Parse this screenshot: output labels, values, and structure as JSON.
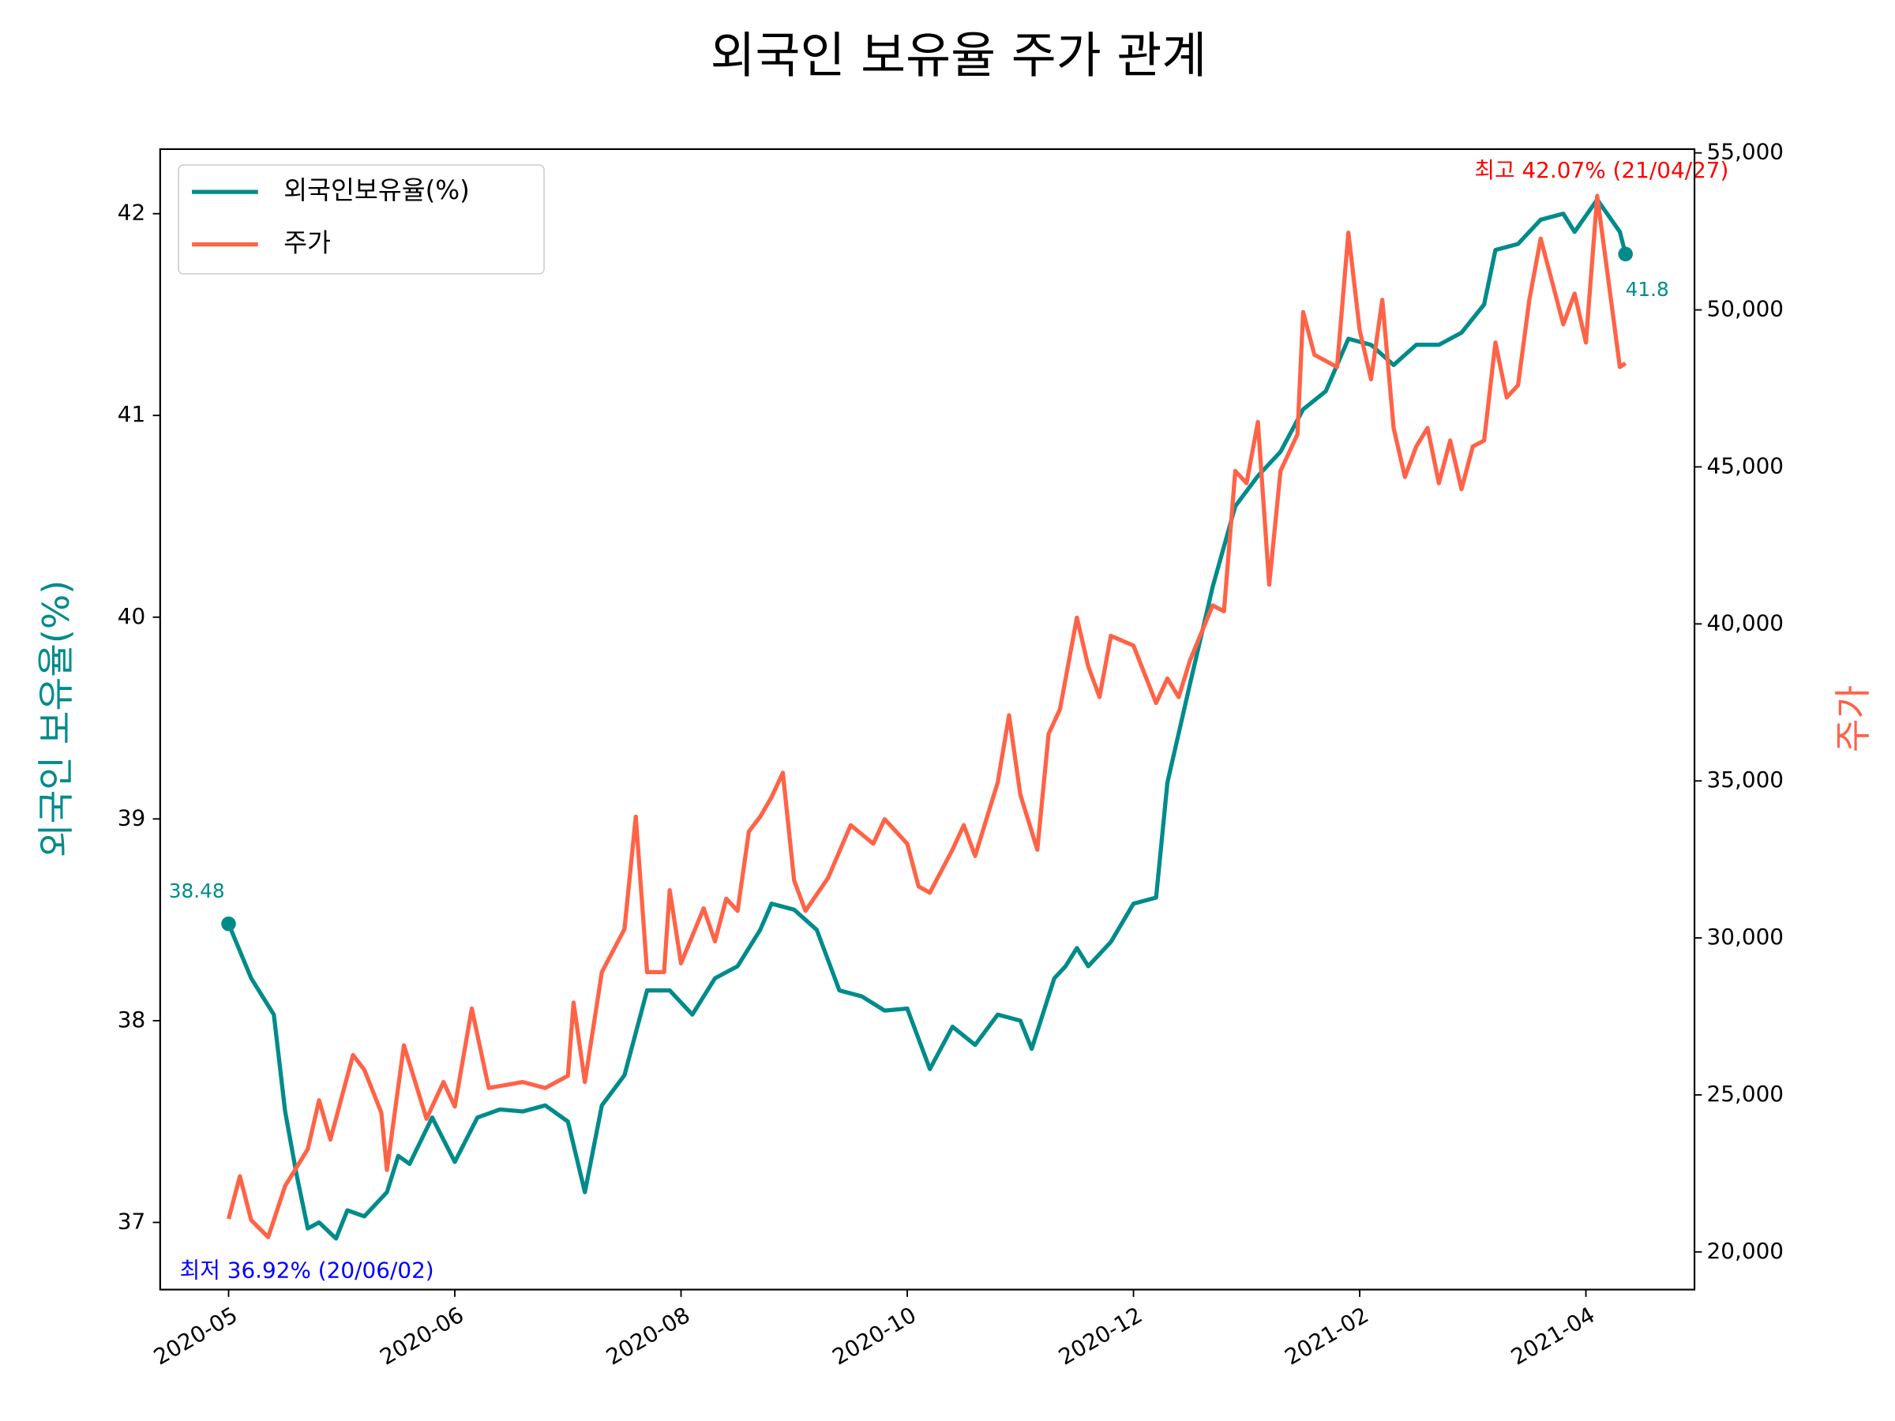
{
  "chart_data": {
    "type": "line",
    "title": "외국인 보유율 주가 관계",
    "ylabel": "외국인 보유율(%)",
    "y2label": "주가",
    "xlim": [
      -12.1,
      259.2
    ],
    "xticks": [
      {
        "value": 0,
        "label": "2020-05"
      },
      {
        "value": 40,
        "label": "2020-06"
      },
      {
        "value": 80,
        "label": "2020-08"
      },
      {
        "value": 120,
        "label": "2020-10"
      },
      {
        "value": 160,
        "label": "2020-12"
      },
      {
        "value": 200,
        "label": "2021-02"
      },
      {
        "value": 240,
        "label": "2021-04"
      }
    ],
    "ylim": [
      36.667,
      42.32
    ],
    "yticks": [
      37,
      38,
      39,
      40,
      41,
      42
    ],
    "y2lim": [
      18800,
      55120
    ],
    "y2ticks": [
      {
        "value": 20000,
        "label": "20,000"
      },
      {
        "value": 25000,
        "label": "25,000"
      },
      {
        "value": 30000,
        "label": "30,000"
      },
      {
        "value": 35000,
        "label": "35,000"
      },
      {
        "value": 40000,
        "label": "40,000"
      },
      {
        "value": 45000,
        "label": "45,000"
      },
      {
        "value": 50000,
        "label": "50,000"
      },
      {
        "value": 55000,
        "label": "55,000"
      }
    ],
    "legend": "upper left",
    "series": [
      {
        "name": "외국인보유율(%)",
        "color": "#008b8b",
        "x": [
          0,
          4,
          8,
          10,
          12,
          14,
          16,
          19,
          21,
          24,
          28,
          30,
          32,
          36,
          40,
          44,
          48,
          52,
          56,
          60,
          63,
          66,
          70,
          74,
          78,
          82,
          86,
          90,
          94,
          96,
          100,
          104,
          108,
          112,
          116,
          120,
          124,
          128,
          132,
          136,
          140,
          142,
          146,
          148,
          150,
          152,
          156,
          160,
          164,
          166,
          170,
          174,
          178,
          182,
          186,
          190,
          194,
          198,
          202,
          206,
          210,
          214,
          218,
          222,
          224,
          228,
          232,
          236,
          238,
          242,
          246,
          247
        ],
        "values": [
          38.48,
          38.21,
          38.03,
          37.55,
          37.24,
          36.97,
          37.0,
          36.92,
          37.06,
          37.03,
          37.15,
          37.33,
          37.29,
          37.52,
          37.3,
          37.52,
          37.56,
          37.55,
          37.58,
          37.5,
          37.15,
          37.58,
          37.73,
          38.15,
          38.15,
          38.03,
          38.21,
          38.27,
          38.45,
          38.58,
          38.55,
          38.45,
          38.15,
          38.12,
          38.05,
          38.06,
          37.76,
          37.97,
          37.88,
          38.03,
          38.0,
          37.86,
          38.21,
          38.27,
          38.36,
          38.27,
          38.39,
          38.58,
          38.61,
          39.18,
          39.67,
          40.15,
          40.55,
          40.7,
          40.82,
          41.03,
          41.12,
          41.38,
          41.35,
          41.25,
          41.35,
          41.35,
          41.41,
          41.55,
          41.82,
          41.85,
          41.97,
          42.0,
          41.91,
          42.07,
          41.91,
          41.8
        ]
      },
      {
        "name": "주가",
        "color": "#ff6347",
        "axis": "y2",
        "x": [
          0,
          2,
          4,
          7,
          10,
          14,
          16,
          18,
          22,
          24,
          27,
          28,
          31,
          35,
          38,
          40,
          43,
          46,
          52,
          56,
          60,
          61,
          63,
          66,
          70,
          72,
          74,
          77,
          78,
          80,
          84,
          86,
          88,
          90,
          92,
          94,
          96,
          98,
          100,
          102,
          106,
          110,
          114,
          116,
          120,
          122,
          124,
          128,
          130,
          132,
          136,
          138,
          140,
          143,
          145,
          147,
          150,
          152,
          154,
          156,
          160,
          164,
          166,
          168,
          170,
          174,
          176,
          178,
          180,
          182,
          184,
          186,
          189,
          190,
          192,
          196,
          198,
          200,
          202,
          204,
          206,
          208,
          210,
          212,
          214,
          216,
          218,
          220,
          222,
          224,
          226,
          228,
          230,
          232,
          234,
          236,
          238,
          240,
          242,
          244,
          246,
          247
        ],
        "values": [
          21050,
          22410,
          21010,
          20470,
          22100,
          23270,
          24830,
          23580,
          26270,
          25800,
          24440,
          22610,
          26580,
          24240,
          25410,
          24630,
          27750,
          25220,
          25410,
          25220,
          25610,
          27940,
          25410,
          28910,
          30280,
          33860,
          28910,
          28910,
          31520,
          29190,
          30940,
          29890,
          31250,
          30860,
          33390,
          33860,
          34480,
          35260,
          31830,
          30860,
          31910,
          33590,
          33000,
          33780,
          33000,
          31640,
          31440,
          32810,
          33590,
          32610,
          34950,
          37090,
          34560,
          32810,
          36500,
          37280,
          40200,
          38650,
          37670,
          39620,
          39310,
          37480,
          38260,
          37670,
          38840,
          40590,
          40400,
          44870,
          44480,
          46430,
          41250,
          44870,
          46040,
          49930,
          48570,
          48180,
          52460,
          49350,
          47790,
          50320,
          46240,
          44680,
          45650,
          46240,
          44480,
          45840,
          44290,
          45650,
          45840,
          48960,
          47210,
          47600,
          50320,
          52270,
          50910,
          49540,
          50520,
          48960,
          53630,
          50910,
          48180,
          48300
        ]
      }
    ],
    "annotations": [
      "최고 42.07% (21/04/27)",
      "최저 36.92% (20/06/02)"
    ]
  }
}
